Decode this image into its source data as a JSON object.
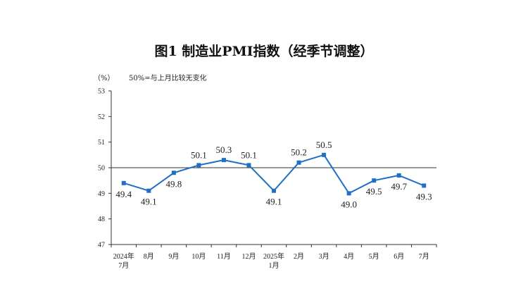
{
  "chart_data": {
    "type": "line",
    "title": "图1  制造业PMI指数（经季节调整）",
    "unit_label": "（%）",
    "reference_label": "50%=与上月比较无变化",
    "reference_value": 50,
    "ylim": [
      47,
      53
    ],
    "yticks": [
      "53",
      "52",
      "51",
      "50",
      "49",
      "48",
      "47"
    ],
    "categories": [
      [
        "2024年",
        "7月"
      ],
      [
        "8月"
      ],
      [
        "9月"
      ],
      [
        "10月"
      ],
      [
        "11月"
      ],
      [
        "12月"
      ],
      [
        "2025年",
        "1月"
      ],
      [
        "2月"
      ],
      [
        "3月"
      ],
      [
        "4月"
      ],
      [
        "5月"
      ],
      [
        "6月"
      ],
      [
        "7月"
      ]
    ],
    "values": [
      49.4,
      49.1,
      49.8,
      50.1,
      50.3,
      50.1,
      49.1,
      50.2,
      50.5,
      49.0,
      49.5,
      49.7,
      49.3
    ],
    "data_labels": [
      "49.4",
      "49.1",
      "49.8",
      "50.1",
      "50.3",
      "50.1",
      "49.1",
      "50.2",
      "50.5",
      "49.0",
      "49.5",
      "49.7",
      "49.3"
    ],
    "label_positions": [
      "below",
      "below",
      "below",
      "above",
      "above",
      "above",
      "below",
      "above",
      "above",
      "below",
      "below",
      "below",
      "below"
    ],
    "line_color": "#1f6fc5",
    "grid": false
  }
}
